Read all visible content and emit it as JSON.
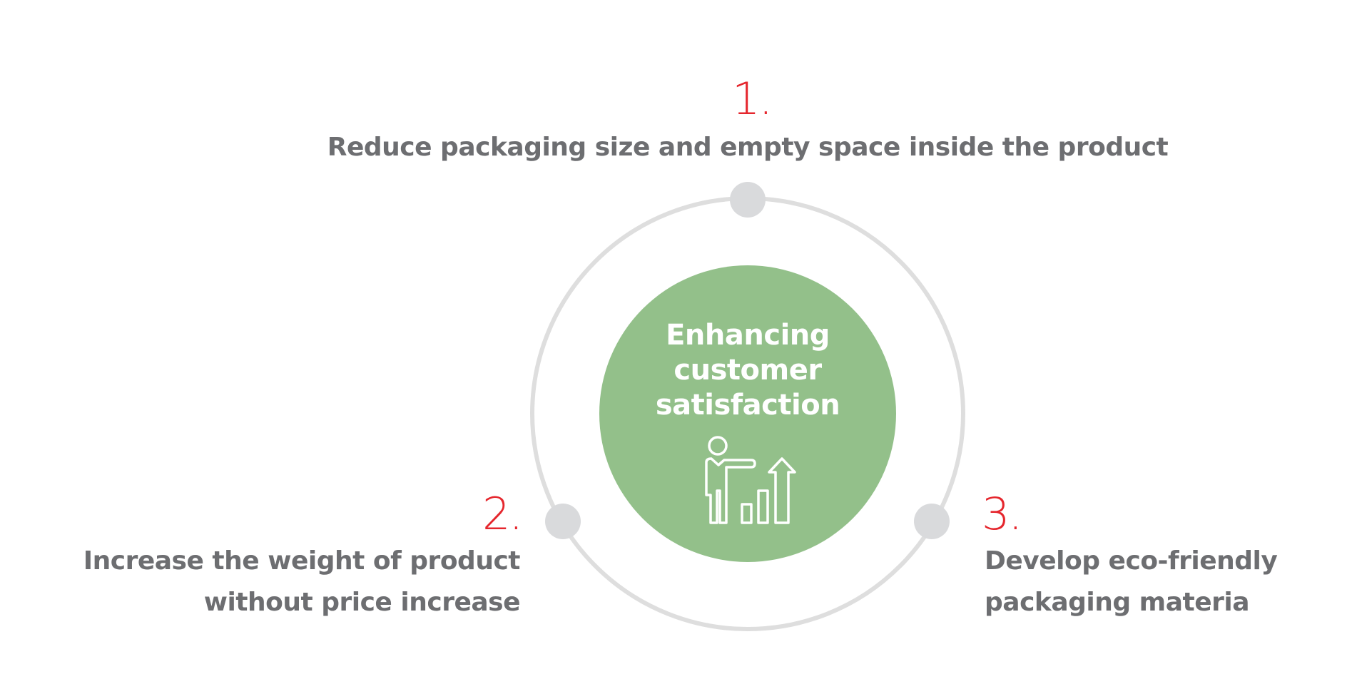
{
  "center": {
    "lines": [
      "Enhancing",
      "customer",
      "satisfaction"
    ],
    "icon": "presenter-growth-chart-icon"
  },
  "items": [
    {
      "number": "1.",
      "text_lines": [
        "Reduce packaging size and empty space inside the product"
      ]
    },
    {
      "number": "2.",
      "text_lines": [
        "Increase the weight of product",
        "without price increase"
      ]
    },
    {
      "number": "3.",
      "text_lines": [
        "Develop eco-friendly",
        "packaging materia"
      ]
    }
  ],
  "colors": {
    "accent": "#e5262d",
    "center_fill": "#93c08a",
    "ring": "#dedede",
    "node": "#d9dadc",
    "text": "#6d6e71"
  }
}
